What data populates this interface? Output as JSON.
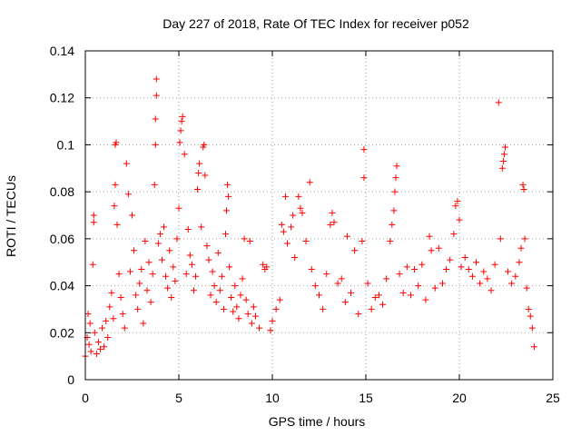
{
  "chart_data": {
    "type": "scatter",
    "title": "Day 227 of 2018, Rate Of TEC Index for receiver p052",
    "xlabel": "GPS time / hours",
    "ylabel": "ROTI / TECUs",
    "xlim": [
      0,
      25
    ],
    "ylim": [
      0,
      0.14
    ],
    "xticks": [
      0,
      5,
      10,
      15,
      20,
      25
    ],
    "xtick_labels": [
      "0",
      "5",
      "10",
      "15",
      "20",
      "25"
    ],
    "yticks": [
      0,
      0.02,
      0.04,
      0.06,
      0.08,
      0.1,
      0.12,
      0.14
    ],
    "ytick_labels": [
      "0",
      "0.02",
      "0.04",
      "0.06",
      "0.08",
      "0.1",
      "0.12",
      "0.14"
    ],
    "grid": true,
    "marker": "+",
    "color": "#ff0000",
    "series": [
      {
        "name": "ROTI",
        "points": [
          [
            0.0,
            0.01
          ],
          [
            0.1,
            0.018
          ],
          [
            0.15,
            0.028
          ],
          [
            0.2,
            0.015
          ],
          [
            0.25,
            0.024
          ],
          [
            0.3,
            0.012
          ],
          [
            0.4,
            0.049
          ],
          [
            0.45,
            0.067
          ],
          [
            0.45,
            0.07
          ],
          [
            0.5,
            0.02
          ],
          [
            0.6,
            0.011
          ],
          [
            0.7,
            0.016
          ],
          [
            0.8,
            0.013
          ],
          [
            0.9,
            0.022
          ],
          [
            1.0,
            0.014
          ],
          [
            1.1,
            0.025
          ],
          [
            1.2,
            0.018
          ],
          [
            1.3,
            0.031
          ],
          [
            1.4,
            0.037
          ],
          [
            1.5,
            0.026
          ],
          [
            1.55,
            0.074
          ],
          [
            1.6,
            0.083
          ],
          [
            1.6,
            0.1
          ],
          [
            1.65,
            0.101
          ],
          [
            1.7,
            0.066
          ],
          [
            1.8,
            0.045
          ],
          [
            1.9,
            0.035
          ],
          [
            2.0,
            0.028
          ],
          [
            2.1,
            0.022
          ],
          [
            2.2,
            0.092
          ],
          [
            2.3,
            0.079
          ],
          [
            2.4,
            0.046
          ],
          [
            2.5,
            0.07
          ],
          [
            2.6,
            0.055
          ],
          [
            2.7,
            0.036
          ],
          [
            2.8,
            0.03
          ],
          [
            2.9,
            0.041
          ],
          [
            3.0,
            0.047
          ],
          [
            3.1,
            0.024
          ],
          [
            3.2,
            0.059
          ],
          [
            3.3,
            0.038
          ],
          [
            3.4,
            0.05
          ],
          [
            3.5,
            0.033
          ],
          [
            3.6,
            0.045
          ],
          [
            3.7,
            0.083
          ],
          [
            3.75,
            0.1
          ],
          [
            3.75,
            0.111
          ],
          [
            3.8,
            0.121
          ],
          [
            3.8,
            0.128
          ],
          [
            3.9,
            0.058
          ],
          [
            4.0,
            0.062
          ],
          [
            4.1,
            0.051
          ],
          [
            4.2,
            0.065
          ],
          [
            4.3,
            0.044
          ],
          [
            4.4,
            0.039
          ],
          [
            4.5,
            0.055
          ],
          [
            4.6,
            0.035
          ],
          [
            4.7,
            0.048
          ],
          [
            4.8,
            0.042
          ],
          [
            4.9,
            0.06
          ],
          [
            5.0,
            0.073
          ],
          [
            5.05,
            0.101
          ],
          [
            5.1,
            0.106
          ],
          [
            5.15,
            0.11
          ],
          [
            5.2,
            0.112
          ],
          [
            5.3,
            0.096
          ],
          [
            5.4,
            0.045
          ],
          [
            5.5,
            0.064
          ],
          [
            5.6,
            0.053
          ],
          [
            5.7,
            0.049
          ],
          [
            5.8,
            0.038
          ],
          [
            5.9,
            0.044
          ],
          [
            6.0,
            0.081
          ],
          [
            6.05,
            0.088
          ],
          [
            6.1,
            0.092
          ],
          [
            6.2,
            0.065
          ],
          [
            6.3,
            0.099
          ],
          [
            6.35,
            0.1
          ],
          [
            6.4,
            0.087
          ],
          [
            6.5,
            0.057
          ],
          [
            6.6,
            0.051
          ],
          [
            6.7,
            0.036
          ],
          [
            6.8,
            0.046
          ],
          [
            6.9,
            0.04
          ],
          [
            7.0,
            0.033
          ],
          [
            7.1,
            0.054
          ],
          [
            7.2,
            0.038
          ],
          [
            7.3,
            0.044
          ],
          [
            7.4,
            0.03
          ],
          [
            7.5,
            0.062
          ],
          [
            7.55,
            0.072
          ],
          [
            7.6,
            0.083
          ],
          [
            7.65,
            0.078
          ],
          [
            7.7,
            0.048
          ],
          [
            7.8,
            0.035
          ],
          [
            7.9,
            0.029
          ],
          [
            8.0,
            0.04
          ],
          [
            8.1,
            0.031
          ],
          [
            8.2,
            0.026
          ],
          [
            8.3,
            0.036
          ],
          [
            8.4,
            0.043
          ],
          [
            8.5,
            0.06
          ],
          [
            8.6,
            0.034
          ],
          [
            8.7,
            0.028
          ],
          [
            8.8,
            0.059
          ],
          [
            8.9,
            0.024
          ],
          [
            9.0,
            0.031
          ],
          [
            9.1,
            0.027
          ],
          [
            9.3,
            0.022
          ],
          [
            9.5,
            0.049
          ],
          [
            9.6,
            0.047
          ],
          [
            9.7,
            0.048
          ],
          [
            9.9,
            0.021
          ],
          [
            10.0,
            0.025
          ],
          [
            10.2,
            0.03
          ],
          [
            10.4,
            0.034
          ],
          [
            10.5,
            0.066
          ],
          [
            10.6,
            0.063
          ],
          [
            10.7,
            0.078
          ],
          [
            10.8,
            0.058
          ],
          [
            11.0,
            0.065
          ],
          [
            11.1,
            0.07
          ],
          [
            11.2,
            0.052
          ],
          [
            11.4,
            0.078
          ],
          [
            11.5,
            0.073
          ],
          [
            11.6,
            0.071
          ],
          [
            11.8,
            0.059
          ],
          [
            12.0,
            0.084
          ],
          [
            12.1,
            0.047
          ],
          [
            12.3,
            0.04
          ],
          [
            12.5,
            0.036
          ],
          [
            12.7,
            0.03
          ],
          [
            12.9,
            0.045
          ],
          [
            13.1,
            0.066
          ],
          [
            13.2,
            0.071
          ],
          [
            13.3,
            0.067
          ],
          [
            13.5,
            0.041
          ],
          [
            13.7,
            0.043
          ],
          [
            13.9,
            0.033
          ],
          [
            14.0,
            0.061
          ],
          [
            14.2,
            0.037
          ],
          [
            14.4,
            0.055
          ],
          [
            14.6,
            0.028
          ],
          [
            14.8,
            0.059
          ],
          [
            14.9,
            0.086
          ],
          [
            14.9,
            0.098
          ],
          [
            15.1,
            0.041
          ],
          [
            15.3,
            0.03
          ],
          [
            15.5,
            0.035
          ],
          [
            15.7,
            0.036
          ],
          [
            15.9,
            0.032
          ],
          [
            16.1,
            0.043
          ],
          [
            16.3,
            0.059
          ],
          [
            16.4,
            0.066
          ],
          [
            16.5,
            0.072
          ],
          [
            16.55,
            0.08
          ],
          [
            16.6,
            0.086
          ],
          [
            16.65,
            0.091
          ],
          [
            16.8,
            0.045
          ],
          [
            17.0,
            0.037
          ],
          [
            17.2,
            0.048
          ],
          [
            17.4,
            0.036
          ],
          [
            17.6,
            0.047
          ],
          [
            17.8,
            0.04
          ],
          [
            18.0,
            0.049
          ],
          [
            18.2,
            0.034
          ],
          [
            18.4,
            0.061
          ],
          [
            18.5,
            0.055
          ],
          [
            18.7,
            0.039
          ],
          [
            18.9,
            0.056
          ],
          [
            19.1,
            0.041
          ],
          [
            19.3,
            0.047
          ],
          [
            19.5,
            0.051
          ],
          [
            19.7,
            0.062
          ],
          [
            19.8,
            0.074
          ],
          [
            19.9,
            0.076
          ],
          [
            20.0,
            0.068
          ],
          [
            20.1,
            0.048
          ],
          [
            20.3,
            0.052
          ],
          [
            20.5,
            0.047
          ],
          [
            20.7,
            0.044
          ],
          [
            20.9,
            0.05
          ],
          [
            21.1,
            0.041
          ],
          [
            21.3,
            0.046
          ],
          [
            21.5,
            0.043
          ],
          [
            21.7,
            0.038
          ],
          [
            21.9,
            0.049
          ],
          [
            22.1,
            0.118
          ],
          [
            22.2,
            0.06
          ],
          [
            22.3,
            0.09
          ],
          [
            22.35,
            0.093
          ],
          [
            22.4,
            0.096
          ],
          [
            22.45,
            0.099
          ],
          [
            22.6,
            0.046
          ],
          [
            22.8,
            0.041
          ],
          [
            23.0,
            0.044
          ],
          [
            23.2,
            0.05
          ],
          [
            23.3,
            0.056
          ],
          [
            23.4,
            0.083
          ],
          [
            23.45,
            0.081
          ],
          [
            23.5,
            0.06
          ],
          [
            23.6,
            0.039
          ],
          [
            23.7,
            0.03
          ],
          [
            23.8,
            0.027
          ],
          [
            23.9,
            0.022
          ],
          [
            24.0,
            0.014
          ]
        ]
      }
    ]
  }
}
